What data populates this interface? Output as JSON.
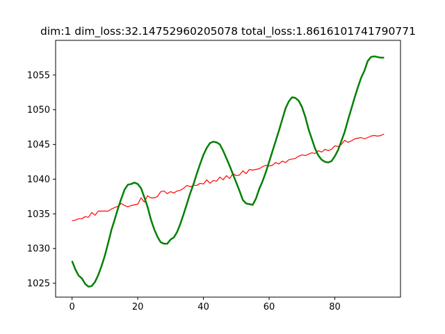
{
  "chart_data": {
    "type": "line",
    "title": "dim:1 dim_loss:32.14752960205078 total_loss:1.8616101741790771",
    "xlabel": "",
    "ylabel": "",
    "xlim": [
      -5,
      100
    ],
    "ylim": [
      1023,
      1060
    ],
    "xticks": [
      0,
      20,
      40,
      60,
      80
    ],
    "yticks": [
      1025,
      1030,
      1035,
      1040,
      1045,
      1050,
      1055
    ],
    "grid": false,
    "legend": "none",
    "series": [
      {
        "color": "#ff0000",
        "line_width": 1.2,
        "x": [
          0,
          1,
          2,
          3,
          4,
          5,
          6,
          7,
          8,
          9,
          10,
          11,
          12,
          13,
          14,
          15,
          16,
          17,
          18,
          19,
          20,
          21,
          22,
          23,
          24,
          25,
          26,
          27,
          28,
          29,
          30,
          31,
          32,
          33,
          34,
          35,
          36,
          37,
          38,
          39,
          40,
          41,
          42,
          43,
          44,
          45,
          46,
          47,
          48,
          49,
          50,
          51,
          52,
          53,
          54,
          55,
          56,
          57,
          58,
          59,
          60,
          61,
          62,
          63,
          64,
          65,
          66,
          67,
          68,
          69,
          70,
          71,
          72,
          73,
          74,
          75,
          76,
          77,
          78,
          79,
          80,
          81,
          82,
          83,
          84,
          85,
          86,
          87,
          88,
          89,
          90,
          91,
          92,
          93,
          94,
          95
        ],
        "y": [
          1034.0,
          1034.1,
          1034.3,
          1034.3,
          1034.6,
          1034.5,
          1035.2,
          1034.8,
          1035.4,
          1035.4,
          1035.4,
          1035.4,
          1035.7,
          1035.9,
          1036.1,
          1036.5,
          1036.2,
          1036.0,
          1036.2,
          1036.3,
          1036.4,
          1037.3,
          1036.7,
          1037.6,
          1037.3,
          1037.3,
          1037.5,
          1038.2,
          1038.3,
          1037.9,
          1038.2,
          1038.0,
          1038.3,
          1038.4,
          1038.7,
          1039.1,
          1038.9,
          1039.1,
          1039.1,
          1039.4,
          1039.3,
          1039.9,
          1039.4,
          1039.8,
          1039.7,
          1040.3,
          1039.9,
          1040.5,
          1040.1,
          1040.8,
          1040.5,
          1040.6,
          1041.2,
          1040.8,
          1041.4,
          1041.3,
          1041.4,
          1041.5,
          1041.8,
          1042.0,
          1041.9,
          1042.0,
          1042.4,
          1042.2,
          1042.6,
          1042.4,
          1042.8,
          1042.9,
          1043.0,
          1043.3,
          1043.5,
          1043.4,
          1043.6,
          1043.8,
          1043.7,
          1044.1,
          1043.9,
          1044.3,
          1044.1,
          1044.3,
          1044.8,
          1044.7,
          1045.0,
          1045.6,
          1045.3,
          1045.5,
          1045.8,
          1045.9,
          1046.0,
          1045.8,
          1046.0,
          1046.2,
          1046.3,
          1046.2,
          1046.3,
          1046.5
        ]
      },
      {
        "color": "#008000",
        "line_width": 2.5,
        "x": [
          0,
          1,
          2,
          3,
          4,
          5,
          6,
          7,
          8,
          9,
          10,
          11,
          12,
          13,
          14,
          15,
          16,
          17,
          18,
          19,
          20,
          21,
          22,
          23,
          24,
          25,
          26,
          27,
          28,
          29,
          30,
          31,
          32,
          33,
          34,
          35,
          36,
          37,
          38,
          39,
          40,
          41,
          42,
          43,
          44,
          45,
          46,
          47,
          48,
          49,
          50,
          51,
          52,
          53,
          54,
          55,
          56,
          57,
          58,
          59,
          60,
          61,
          62,
          63,
          64,
          65,
          66,
          67,
          68,
          69,
          70,
          71,
          72,
          73,
          74,
          75,
          76,
          77,
          78,
          79,
          80,
          81,
          82,
          83,
          84,
          85,
          86,
          87,
          88,
          89,
          90,
          91,
          92,
          93,
          94,
          95
        ],
        "y": [
          1028.2,
          1027.0,
          1026.1,
          1025.7,
          1024.9,
          1024.5,
          1024.6,
          1025.2,
          1026.2,
          1027.5,
          1029.0,
          1030.8,
          1032.7,
          1034.2,
          1035.8,
          1037.2,
          1038.5,
          1039.2,
          1039.3,
          1039.5,
          1039.3,
          1038.7,
          1037.4,
          1036.0,
          1034.2,
          1032.8,
          1031.7,
          1030.9,
          1030.7,
          1030.7,
          1031.3,
          1031.6,
          1032.4,
          1033.6,
          1035.0,
          1036.5,
          1038.0,
          1039.3,
          1040.8,
          1042.2,
          1043.5,
          1044.5,
          1045.2,
          1045.4,
          1045.3,
          1045.0,
          1044.1,
          1043.0,
          1041.9,
          1040.7,
          1039.5,
          1038.3,
          1037.0,
          1036.5,
          1036.4,
          1036.3,
          1037.2,
          1038.6,
          1039.7,
          1041.0,
          1042.5,
          1044.0,
          1045.5,
          1047.0,
          1048.6,
          1050.2,
          1051.2,
          1051.8,
          1051.7,
          1051.3,
          1050.4,
          1049.0,
          1047.2,
          1045.8,
          1044.4,
          1043.4,
          1042.8,
          1042.5,
          1042.4,
          1042.6,
          1043.3,
          1044.2,
          1045.5,
          1046.8,
          1048.5,
          1050.1,
          1051.7,
          1053.2,
          1054.6,
          1055.6,
          1057.0,
          1057.6,
          1057.7,
          1057.6,
          1057.5,
          1057.5
        ]
      }
    ]
  }
}
